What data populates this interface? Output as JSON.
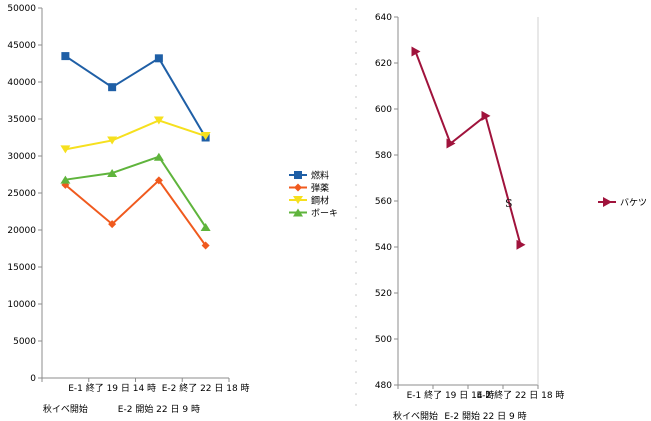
{
  "chart_data": [
    {
      "type": "line",
      "categories": [
        "秋イベ開始",
        "E-1 終了 19 日 14 時",
        "E-2 開始 22 日 9 時",
        "E-2 終了 22 日 18 時"
      ],
      "ylim": [
        0,
        50000
      ],
      "yticks": [
        "0",
        "5000",
        "10000",
        "15000",
        "20000",
        "25000",
        "30000",
        "35000",
        "40000",
        "45000",
        "50000"
      ],
      "grid": false,
      "legend": "right",
      "series": [
        {
          "name": "燃料",
          "values": [
            43500,
            39300,
            43200,
            32500
          ],
          "color": "#1f5fa6",
          "marker": "square"
        },
        {
          "name": "弾薬",
          "values": [
            26100,
            20800,
            26700,
            17900
          ],
          "color": "#f05a1e",
          "marker": "diamond"
        },
        {
          "name": "鋼材",
          "values": [
            30900,
            32100,
            34800,
            32700
          ],
          "color": "#f6e01e",
          "marker": "triangle-down"
        },
        {
          "name": "ボーキ",
          "values": [
            26800,
            27700,
            29900,
            20400
          ],
          "color": "#5fb43c",
          "marker": "triangle-up"
        }
      ]
    },
    {
      "type": "line",
      "categories": [
        "秋イベ開始",
        "E-1 終了 19 日 14 時",
        "E-2 開始 22 日 9 時",
        "E-2 終了 22 日 18 時"
      ],
      "ylim": [
        480,
        640
      ],
      "yticks": [
        "480",
        "500",
        "520",
        "540",
        "560",
        "580",
        "600",
        "620",
        "640"
      ],
      "grid": false,
      "legend": "right",
      "annotation": "S",
      "series": [
        {
          "name": "バケツ",
          "values": [
            625,
            585,
            597,
            541
          ],
          "color": "#a0133c",
          "marker": "triangle-right"
        }
      ]
    }
  ]
}
